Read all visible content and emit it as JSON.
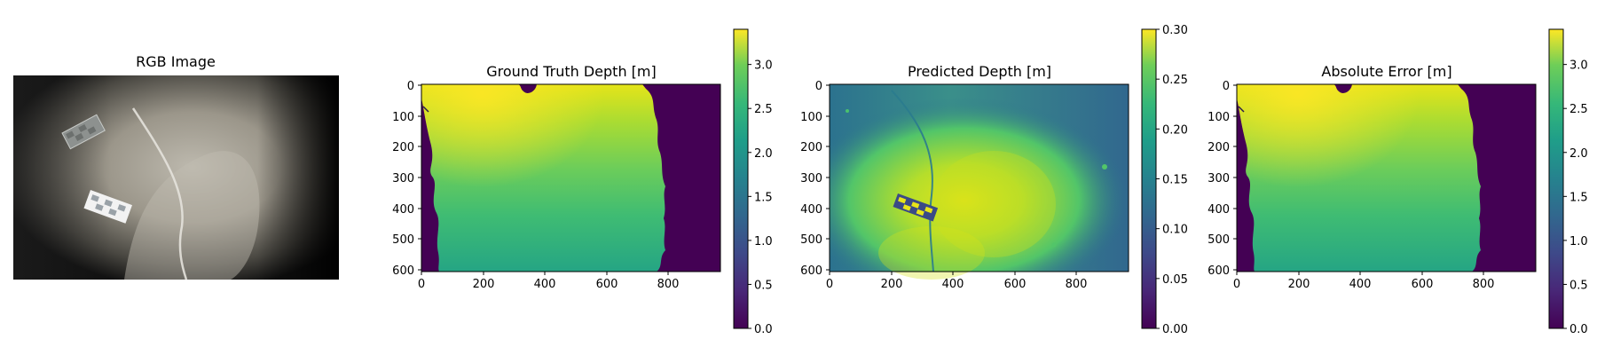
{
  "chart_data": [
    {
      "type": "image",
      "title": "RGB Image"
    },
    {
      "type": "heatmap",
      "title": "Ground Truth Depth [m]",
      "colormap": "viridis",
      "x_ticks": [
        "0",
        "200",
        "400",
        "600",
        "800"
      ],
      "y_ticks": [
        "0",
        "100",
        "200",
        "300",
        "400",
        "500",
        "600"
      ],
      "xlim": [
        0,
        968
      ],
      "ylim": [
        608,
        0
      ],
      "colorbar": {
        "range": [
          0.0,
          3.4
        ],
        "ticks": [
          "0.0",
          "0.5",
          "1.0",
          "1.5",
          "2.0",
          "2.5",
          "3.0"
        ]
      }
    },
    {
      "type": "heatmap",
      "title": "Predicted Depth [m]",
      "colormap": "viridis",
      "x_ticks": [
        "0",
        "200",
        "400",
        "600",
        "800"
      ],
      "y_ticks": [
        "0",
        "100",
        "200",
        "300",
        "400",
        "500",
        "600"
      ],
      "xlim": [
        0,
        968
      ],
      "ylim": [
        608,
        0
      ],
      "colorbar": {
        "range": [
          0.0,
          0.3
        ],
        "ticks": [
          "0.00",
          "0.05",
          "0.10",
          "0.15",
          "0.20",
          "0.25",
          "0.30"
        ]
      }
    },
    {
      "type": "heatmap",
      "title": "Absolute Error [m]",
      "colormap": "viridis",
      "x_ticks": [
        "0",
        "200",
        "400",
        "600",
        "800"
      ],
      "y_ticks": [
        "0",
        "100",
        "200",
        "300",
        "400",
        "500",
        "600"
      ],
      "xlim": [
        0,
        968
      ],
      "ylim": [
        608,
        0
      ],
      "colorbar": {
        "range": [
          0.0,
          3.4
        ],
        "ticks": [
          "0.0",
          "0.5",
          "1.0",
          "1.5",
          "2.0",
          "2.5",
          "3.0"
        ]
      }
    }
  ],
  "colors": {
    "viridis_low": "#440154",
    "viridis_mid": "#21918c",
    "viridis_high": "#fde725",
    "sand": "#a9a394",
    "dark_water": "#141414"
  }
}
